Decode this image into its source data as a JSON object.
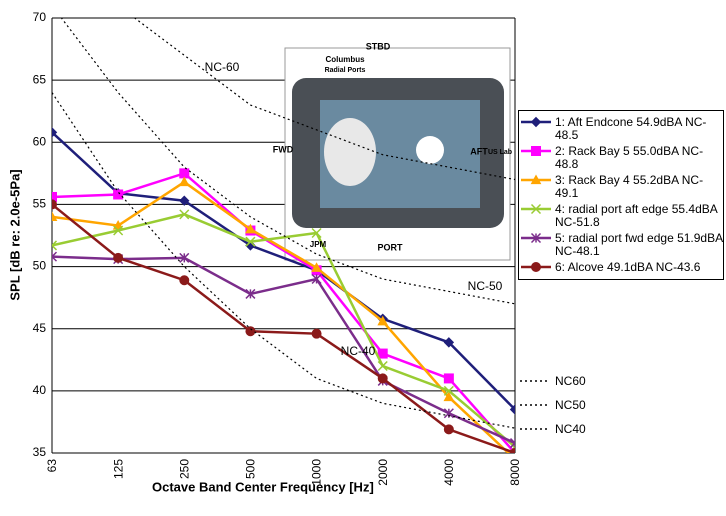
{
  "chart_data": {
    "type": "line",
    "x_label": "Octave Band Center Frequency [Hz]",
    "y_label": "SPL [dB re: 2.0e-5Pa]",
    "categories": [
      "63",
      "125",
      "250",
      "500",
      "1000",
      "2000",
      "4000",
      "8000"
    ],
    "ylim": [
      35,
      70
    ],
    "yticks": [
      35,
      40,
      45,
      50,
      55,
      60,
      65,
      70
    ],
    "grid": true,
    "series": [
      {
        "name": "1: Aft Endcone 54.9dBA NC-48.5",
        "color": "#1f1f7a",
        "marker": "diamond",
        "values": [
          60.8,
          55.9,
          55.3,
          51.7,
          49.7,
          45.8,
          43.9,
          38.5
        ]
      },
      {
        "name": "2: Rack Bay 5 55.0dBA NC-48.8",
        "color": "#ff00ff",
        "marker": "square",
        "values": [
          55.6,
          55.8,
          57.5,
          52.9,
          49.7,
          43.0,
          41.0,
          35.0
        ]
      },
      {
        "name": "3: Rack Bay 4 55.2dBA NC-49.1",
        "color": "#ffa500",
        "marker": "triangle",
        "values": [
          54.0,
          53.3,
          56.8,
          53.0,
          49.9,
          45.6,
          39.5,
          34.5
        ]
      },
      {
        "name": "4: radial port aft edge 55.4dBA NC-51.8",
        "color": "#99cc33",
        "marker": "x",
        "values": [
          51.7,
          52.9,
          54.2,
          52.0,
          52.7,
          42.0,
          40.0,
          35.5
        ]
      },
      {
        "name": "5: radial port fwd edge 51.9dBA NC-48.1",
        "color": "#7b2d8b",
        "marker": "star",
        "values": [
          50.8,
          50.6,
          50.7,
          47.8,
          49.0,
          40.8,
          38.2,
          35.8
        ]
      },
      {
        "name": "6: Alcove 49.1dBA NC-43.6",
        "color": "#8b1a1a",
        "marker": "circle",
        "values": [
          55.0,
          50.7,
          48.9,
          44.8,
          44.6,
          41.0,
          36.9,
          35.0
        ]
      },
      {
        "name": "NC60",
        "color": "#000000",
        "style": "dotted",
        "values": [
          77,
          71,
          67,
          63,
          61,
          59,
          58,
          57
        ]
      },
      {
        "name": "NC50",
        "color": "#000000",
        "style": "dotted",
        "values": [
          71,
          64,
          58,
          54,
          51,
          49,
          48,
          47
        ]
      },
      {
        "name": "NC40",
        "color": "#000000",
        "style": "dotted",
        "values": [
          64,
          56,
          50,
          45,
          41,
          39,
          38,
          37
        ]
      }
    ],
    "annotations": [
      "NC-60",
      "NC-50",
      "NC-40"
    ],
    "inset_labels": [
      "STBD",
      "Columbus",
      "Radial Ports",
      "FWD",
      "AFT",
      "US Lab",
      "PORT",
      "JPM"
    ]
  }
}
